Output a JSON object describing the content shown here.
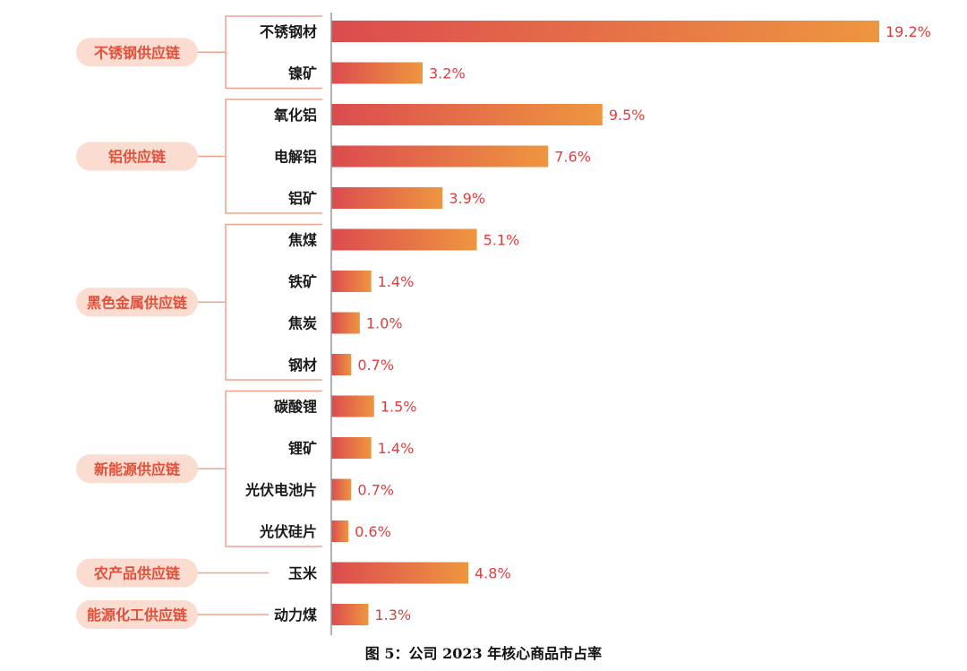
{
  "figure_caption": "图 5：公司 2023 年核心商品市占率",
  "colors": {
    "bar_start": "#dc4b4f",
    "bar_end": "#ee9640",
    "value_text": "#dd3f3f",
    "group_pill": "#fbdcd0",
    "group_text": "#e0503a",
    "bracket": "#f0a48c",
    "axis": "#999999"
  },
  "chart_data": {
    "type": "bar",
    "orientation": "horizontal",
    "title": "",
    "xlabel": "",
    "ylabel": "",
    "xlim": [
      0,
      19.2
    ],
    "value_suffix": "%",
    "grid": false,
    "legend": "none",
    "groups": [
      {
        "name": "不锈钢供应链",
        "items": [
          {
            "category": "不锈钢材",
            "value": 19.2,
            "label": "19.2%"
          },
          {
            "category": "镍矿",
            "value": 3.2,
            "label": "3.2%"
          }
        ]
      },
      {
        "name": "铝供应链",
        "items": [
          {
            "category": "氧化铝",
            "value": 9.5,
            "label": "9.5%"
          },
          {
            "category": "电解铝",
            "value": 7.6,
            "label": "7.6%"
          },
          {
            "category": "铝矿",
            "value": 3.9,
            "label": "3.9%"
          }
        ]
      },
      {
        "name": "黑色金属供应链",
        "items": [
          {
            "category": "焦煤",
            "value": 5.1,
            "label": "5.1%"
          },
          {
            "category": "铁矿",
            "value": 1.4,
            "label": "1.4%"
          },
          {
            "category": "焦炭",
            "value": 1.0,
            "label": "1.0%"
          },
          {
            "category": "钢材",
            "value": 0.7,
            "label": "0.7%"
          }
        ]
      },
      {
        "name": "新能源供应链",
        "items": [
          {
            "category": "碳酸锂",
            "value": 1.5,
            "label": "1.5%"
          },
          {
            "category": "锂矿",
            "value": 1.4,
            "label": "1.4%"
          },
          {
            "category": "光伏电池片",
            "value": 0.7,
            "label": "0.7%"
          },
          {
            "category": "光伏硅片",
            "value": 0.6,
            "label": "0.6%"
          }
        ]
      },
      {
        "name": "农产品供应链",
        "items": [
          {
            "category": "玉米",
            "value": 4.8,
            "label": "4.8%"
          }
        ]
      },
      {
        "name": "能源化工供应链",
        "items": [
          {
            "category": "动力煤",
            "value": 1.3,
            "label": "1.3%"
          }
        ]
      }
    ]
  }
}
